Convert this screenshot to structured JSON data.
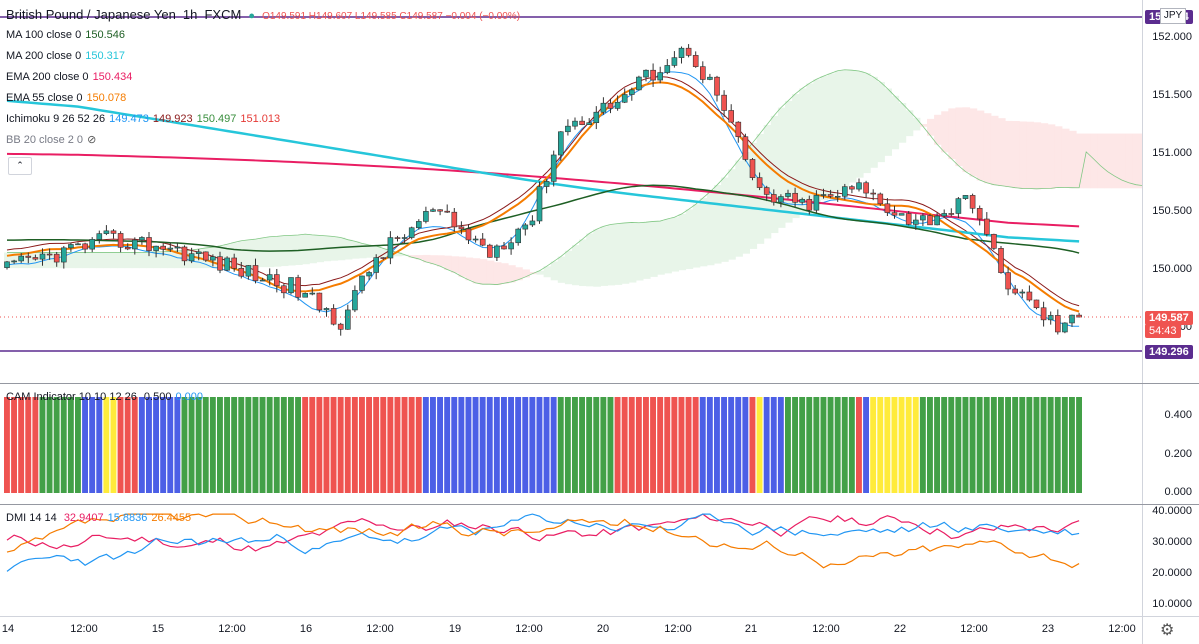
{
  "header": {
    "symbol": "British Pound / Japanese Yen",
    "interval": "1h",
    "exchange": "FXCM",
    "ohlc": "O149.591 H149.607 L149.585 C149.587 −0.004 (−0.00%)"
  },
  "indicators": [
    {
      "label": "MA 100 close 0",
      "values": [
        "150.546"
      ],
      "colors": [
        "#1e5f24"
      ]
    },
    {
      "label": "MA 200 close 0",
      "values": [
        "150.317"
      ],
      "colors": [
        "#26c6da"
      ]
    },
    {
      "label": "EMA 200 close 0",
      "values": [
        "150.434"
      ],
      "colors": [
        "#e91e63"
      ]
    },
    {
      "label": "EMA 55 close 0",
      "values": [
        "150.078"
      ],
      "colors": [
        "#f57c00"
      ]
    },
    {
      "label": "Ichimoku 9 26 52 26",
      "values": [
        "149.473",
        "149.923",
        "150.497",
        "151.013"
      ],
      "colors": [
        "#2196f3",
        "#8b1a1a",
        "#388e3c",
        "#e53935"
      ]
    },
    {
      "label": "BB 20 close 2 0",
      "values": [],
      "colors": []
    }
  ],
  "cam": {
    "label": "CAM Indicator 10 10 12 26",
    "values": [
      "0.500",
      "0.000"
    ],
    "colors": [
      "#131722",
      "#2196f3"
    ]
  },
  "dmi": {
    "label": "DMI 14 14",
    "values": [
      "32.9407",
      "15.8836",
      "26.4455"
    ],
    "colors": [
      "#e91e63",
      "#2196f3",
      "#f57c00"
    ]
  },
  "price_axis": {
    "currency": "JPY",
    "ticks": [
      "152.000",
      "151.500",
      "151.000",
      "150.500",
      "150.000",
      "149.500"
    ],
    "top_line_label": "152.174",
    "current_price": "149.587",
    "countdown": "54:43",
    "bottom_line_label": "149.296"
  },
  "cam_axis": {
    "ticks": [
      "0.400",
      "0.200",
      "0.000"
    ]
  },
  "dmi_axis": {
    "ticks": [
      "40.0000",
      "30.0000",
      "20.0000",
      "10.0000"
    ]
  },
  "time_axis": [
    "14",
    "12:00",
    "15",
    "12:00",
    "16",
    "12:00",
    "19",
    "12:00",
    "20",
    "12:00",
    "21",
    "12:00",
    "22",
    "12:00",
    "23",
    "12:00"
  ],
  "colors": {
    "up_candle": "#26a69a",
    "down_candle": "#ef5350",
    "level_line": "#5b2c8f",
    "cloud_bull": "#e8f5e9",
    "cloud_bear": "#fde7e7"
  }
}
